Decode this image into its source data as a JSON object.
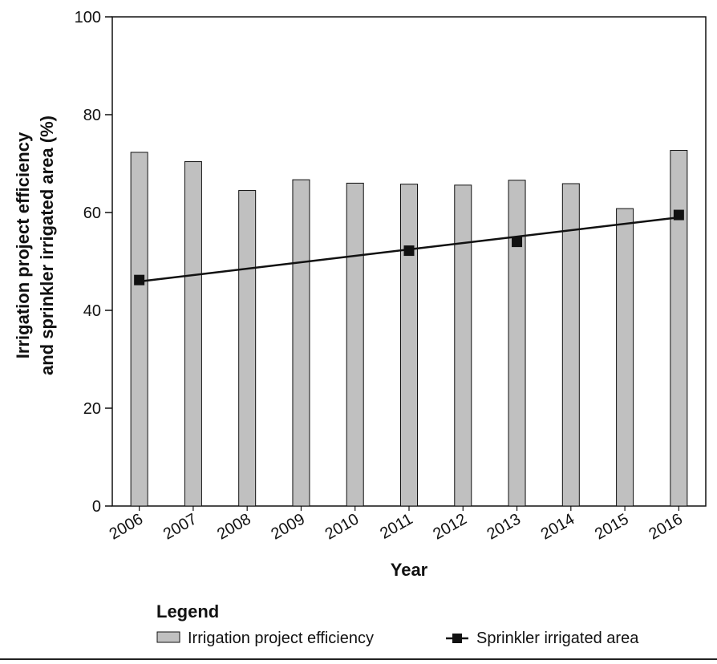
{
  "chart_data": {
    "type": "bar",
    "categories": [
      "2006",
      "2007",
      "2008",
      "2009",
      "2010",
      "2011",
      "2012",
      "2013",
      "2014",
      "2015",
      "2016"
    ],
    "series": [
      {
        "name": "Irrigation project efficiency",
        "type": "bar",
        "color": "#c0c0c0",
        "values": [
          72.3,
          70.4,
          64.5,
          66.7,
          66.0,
          65.8,
          65.6,
          66.6,
          65.9,
          60.8,
          72.7
        ]
      },
      {
        "name": "Sprinkler irrigated area",
        "type": "line",
        "marker": "square",
        "color": "#111111",
        "trend_start": 45.9,
        "trend_end": 59.0,
        "points": [
          {
            "x": "2006",
            "y": 46.2
          },
          {
            "x": "2011",
            "y": 52.2
          },
          {
            "x": "2013",
            "y": 54.0
          },
          {
            "x": "2016",
            "y": 59.5
          }
        ]
      }
    ],
    "xlabel": "Year",
    "ylabel": "Irrigation project efficiency and sprinkler irrigated area (%)",
    "ylabel_lines": [
      "Irrigation project efficiency",
      "and sprinkler irrigated area (%)"
    ],
    "ylim": [
      0,
      100
    ],
    "yticks": [
      0,
      20,
      40,
      60,
      80,
      100
    ],
    "grid": false,
    "legend_title": "Legend",
    "legend_position": "bottom"
  }
}
